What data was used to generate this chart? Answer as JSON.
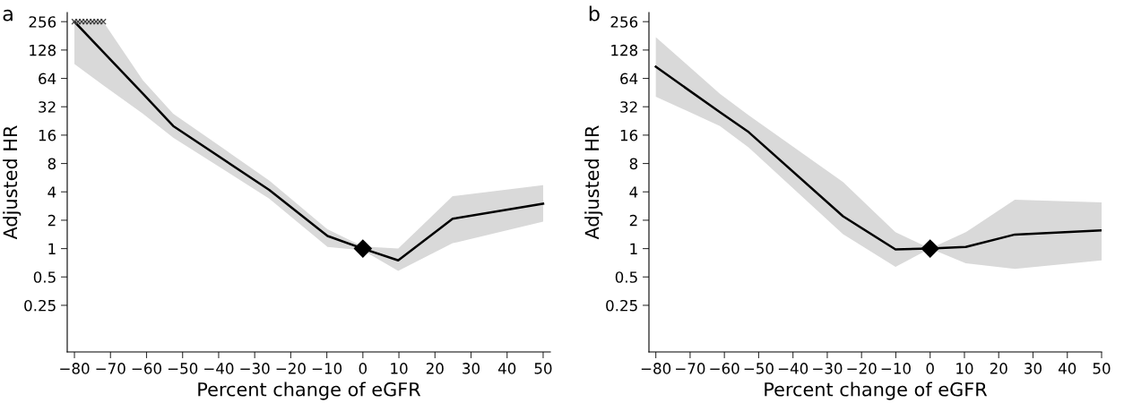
{
  "chart_data": [
    {
      "type": "line",
      "title": "a",
      "xlabel": "Percent change of eGFR",
      "ylabel": "Adjusted HR",
      "log": "y",
      "grid": false,
      "legend": false,
      "xlim": [
        -82,
        52
      ],
      "xticks": [
        -80,
        -70,
        -60,
        -50,
        -40,
        -30,
        -20,
        -10,
        0,
        10,
        20,
        30,
        40,
        50
      ],
      "ylim": [
        0.08,
        320
      ],
      "yticks": [
        0.25,
        0.5,
        1,
        2,
        4,
        8,
        16,
        32,
        64,
        128,
        256
      ],
      "series": [
        {
          "color": "#000000",
          "line_style": "solid",
          "marker": "none",
          "x": [
            -80,
            -72,
            -61,
            -52.6,
            -26,
            -9.8,
            0,
            9.8,
            24.9,
            50
          ],
          "values": [
            256,
            122,
            44,
            20,
            4.2,
            1.36,
            1,
            0.75,
            2.07,
            3.0
          ],
          "lower": [
            91,
            54,
            27,
            15,
            3.4,
            1.04,
            0.96,
            0.58,
            1.14,
            1.93
          ],
          "upper": [
            256,
            256,
            61,
            27,
            5.3,
            1.6,
            1.05,
            1.0,
            3.6,
            4.7
          ]
        },
        {
          "type": "scatter",
          "color": "#404040",
          "marker": "cross",
          "x": [
            -80,
            -79,
            -78,
            -77,
            -76,
            -75,
            -74,
            -73,
            -72
          ],
          "values": [
            256,
            256,
            256,
            256,
            256,
            256,
            256,
            256,
            256
          ]
        },
        {
          "type": "scatter",
          "color": "#000000",
          "marker": "diamond",
          "x": [
            0
          ],
          "values": [
            1
          ]
        }
      ]
    },
    {
      "type": "line",
      "title": "b",
      "xlabel": "Percent change of eGFR",
      "ylabel": "Adjusted HR",
      "log": "y",
      "grid": false,
      "legend": false,
      "xlim": [
        -82,
        50
      ],
      "xticks": [
        -80,
        -70,
        -60,
        -50,
        -40,
        -30,
        -20,
        -10,
        0,
        10,
        20,
        30,
        40,
        50
      ],
      "ylim": [
        0.08,
        320
      ],
      "yticks": [
        0.25,
        0.5,
        1,
        2,
        4,
        8,
        16,
        32,
        64,
        128,
        256
      ],
      "series": [
        {
          "color": "#000000",
          "line_style": "solid",
          "marker": "none",
          "x": [
            -80,
            -61.3,
            -52.9,
            -25.4,
            -10.1,
            0,
            10.4,
            24.7,
            50
          ],
          "values": [
            85,
            28,
            17.2,
            2.2,
            0.98,
            1,
            1.04,
            1.41,
            1.56
          ],
          "lower": [
            41,
            20,
            11.8,
            1.42,
            0.64,
            1,
            0.7,
            0.61,
            0.75
          ],
          "upper": [
            175,
            44,
            26,
            5.1,
            1.49,
            1,
            1.49,
            3.3,
            3.1
          ]
        },
        {
          "type": "scatter",
          "color": "#000000",
          "marker": "diamond",
          "x": [
            0
          ],
          "values": [
            1
          ]
        }
      ]
    }
  ]
}
